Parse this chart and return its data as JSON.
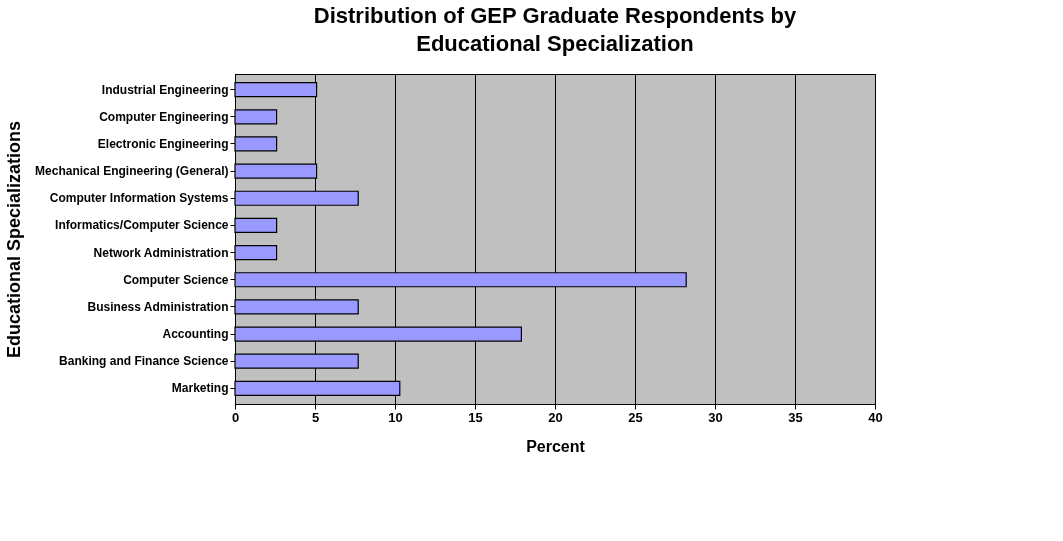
{
  "chart_data": {
    "type": "bar",
    "orientation": "horizontal",
    "title": "Distribution of GEP Graduate Respondents by Educational Specialization",
    "xlabel": "Percent",
    "ylabel": "Educational Specializations",
    "categories": [
      "Industrial Engineering",
      "Computer Engineering",
      "Electronic Engineering",
      "Mechanical Engineering (General)",
      "Computer Information Systems",
      "Informatics/Computer Science",
      "Network Administration",
      "Computer Science",
      "Business Administration",
      "Accounting",
      "Banking and Finance Science",
      "Marketing"
    ],
    "values": [
      5.1,
      2.6,
      2.6,
      5.1,
      7.7,
      2.6,
      2.6,
      28.2,
      7.7,
      17.9,
      7.7,
      10.3
    ],
    "color": "#9999ff",
    "xlim": [
      0,
      40
    ],
    "xticks": [
      0,
      5,
      10,
      15,
      20,
      25,
      30,
      35,
      40
    ],
    "grid": "x"
  }
}
